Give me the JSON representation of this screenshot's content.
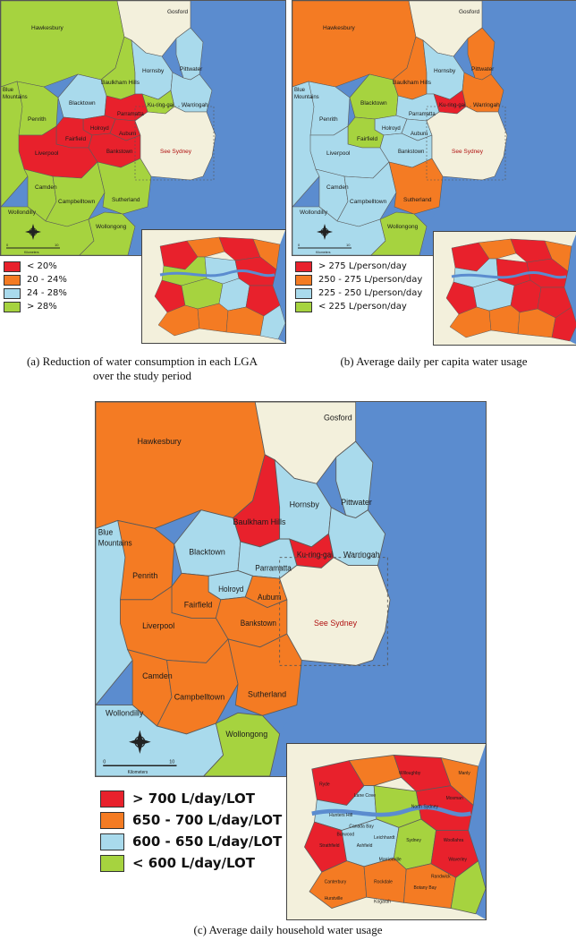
{
  "colors": {
    "ocean": "#5b8ccf",
    "urban": "#f3f0dc",
    "red": "#e8212c",
    "orange": "#f47b23",
    "lightblue": "#a9daec",
    "green": "#a6d33f"
  },
  "panel_a": {
    "caption_line1": "(a) Reduction of water consumption in each LGA",
    "caption_line2": "over the study period",
    "legend": [
      {
        "label": "< 20%",
        "color": "#e8212c"
      },
      {
        "label": "20 - 24%",
        "color": "#f47b23"
      },
      {
        "label": "24 - 28%",
        "color": "#a9daec"
      },
      {
        "label": "> 28%",
        "color": "#a6d33f"
      }
    ],
    "regions": {
      "hawkesbury": "#a6d33f",
      "blue_mountains": "#a6d33f",
      "penrith": "#a6d33f",
      "baulkham": "#a6d33f",
      "hornsby": "#a9daec",
      "gosford": "#f3f0dc",
      "blacktown": "#a9daec",
      "warringah": "#a9daec",
      "kuringgai": "#a6d33f",
      "pittwater": "#a9daec",
      "parramatta": "#e8212c",
      "holroyd": "#e8212c",
      "fairfield": "#e8212c",
      "liverpool": "#e8212c",
      "auburn": "#e8212c",
      "bankstown": "#e8212c",
      "camden": "#a6d33f",
      "campbelltown": "#a6d33f",
      "sutherland": "#a6d33f",
      "wollondilly": "#a6d33f",
      "wollongong": "#a6d33f"
    },
    "inset_colors": [
      "#e8212c",
      "#f47b23",
      "#a6d33f",
      "#a9daec"
    ]
  },
  "panel_b": {
    "caption": "(b) Average daily per capita water usage",
    "legend": [
      {
        "label": "> 275 L/person/day",
        "color": "#e8212c"
      },
      {
        "label": "250 - 275 L/person/day",
        "color": "#f47b23"
      },
      {
        "label": "225 - 250 L/person/day",
        "color": "#a9daec"
      },
      {
        "label": "< 225 L/person/day",
        "color": "#a6d33f"
      }
    ],
    "regions": {
      "hawkesbury": "#f47b23",
      "blue_mountains": "#a9daec",
      "penrith": "#a9daec",
      "baulkham": "#f47b23",
      "hornsby": "#a9daec",
      "gosford": "#f3f0dc",
      "blacktown": "#a6d33f",
      "warringah": "#f47b23",
      "kuringgai": "#e8212c",
      "pittwater": "#f47b23",
      "parramatta": "#a9daec",
      "holroyd": "#a9daec",
      "fairfield": "#a6d33f",
      "liverpool": "#a9daec",
      "auburn": "#a9daec",
      "bankstown": "#a9daec",
      "camden": "#a9daec",
      "campbelltown": "#a9daec",
      "sutherland": "#f47b23",
      "wollondilly": "#a9daec",
      "wollongong": "#a6d33f"
    },
    "inset_colors": [
      "#e8212c",
      "#f47b23",
      "#a9daec",
      "#e8212c"
    ]
  },
  "panel_c": {
    "caption": "(c) Average daily household water usage",
    "legend": [
      {
        "label": "> 700  L/day/LOT",
        "color": "#e8212c"
      },
      {
        "label": "650 - 700  L/day/LOT",
        "color": "#f47b23"
      },
      {
        "label": "600 - 650  L/day/LOT",
        "color": "#a9daec"
      },
      {
        "label": "< 600  L/day/LOT",
        "color": "#a6d33f"
      }
    ],
    "regions": {
      "hawkesbury": "#f47b23",
      "blue_mountains": "#a9daec",
      "penrith": "#f47b23",
      "baulkham": "#e8212c",
      "hornsby": "#a9daec",
      "gosford": "#f3f0dc",
      "blacktown": "#a9daec",
      "warringah": "#a9daec",
      "kuringgai": "#e8212c",
      "pittwater": "#a9daec",
      "parramatta": "#a9daec",
      "holroyd": "#a9daec",
      "fairfield": "#f47b23",
      "liverpool": "#f47b23",
      "auburn": "#f47b23",
      "bankstown": "#f47b23",
      "camden": "#f47b23",
      "campbelltown": "#f47b23",
      "sutherland": "#f47b23",
      "wollondilly": "#a9daec",
      "wollongong": "#a6d33f"
    },
    "inset_labels": {
      "ryde": "Ryde",
      "willoughby": "Willoughby",
      "north_sydney": "North Sydney",
      "mosman": "Mosman",
      "sydney": "Sydney",
      "waverley": "Waverley",
      "canterbury": "Canterbury",
      "rockdale": "Rockdale",
      "randwick": "Randwick",
      "botany_bay": "Botany Bay",
      "hurstville": "Hurstville",
      "kogarah": "Kogarah",
      "marrickville": "Marrickville",
      "ashfield": "Ashfield",
      "canada_bay": "Canada Bay",
      "hunters_hill": "Hunters Hill",
      "lane_cove": "Lane Cove",
      "strathfield": "Strathfield",
      "burwood": "Burwood",
      "leichhardt": "Leichhardt",
      "woollahra": "Woollahra",
      "manly": "Manly"
    },
    "inset_colors": [
      "#e8212c",
      "#f47b23",
      "#a9daec",
      "#a6d33f"
    ]
  },
  "labels": {
    "hawkesbury": "Hawkesbury",
    "gosford": "Gosford",
    "blue_mountains_1": "Blue",
    "blue_mountains_2": "Mountains",
    "penrith": "Penrith",
    "baulkham": "Baulkham Hills",
    "hornsby": "Hornsby",
    "pittwater": "Pittwater",
    "blacktown": "Blacktown",
    "kuringgai": "Ku-ring-gai",
    "warringah": "Warringah",
    "parramatta": "Parramatta",
    "holroyd": "Holroyd",
    "auburn": "Auburn",
    "fairfield": "Fairfield",
    "liverpool": "Liverpool",
    "bankstown": "Bankstown",
    "see_sydney": "See Sydney",
    "camden": "Camden",
    "campbelltown": "Campbelltown",
    "sutherland": "Sutherland",
    "wollondilly": "Wollondilly",
    "wollongong": "Wollongong",
    "scale_unit": "Kilometers",
    "scale_zero": "0",
    "scale_ten": "10"
  }
}
